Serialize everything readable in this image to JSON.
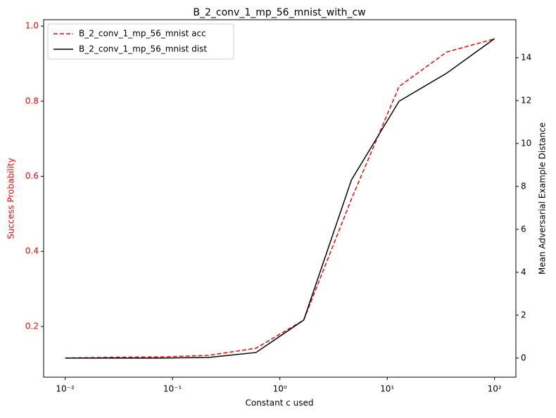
{
  "chart_data": {
    "type": "line",
    "title": "B_2_conv_1_mp_56_mnist_with_cw",
    "x_label": "Constant c used",
    "y_label": "Success Probability",
    "y2_label": "Mean Adversarial Example Distance",
    "x": [
      0.01,
      0.0278,
      0.0774,
      0.215,
      0.599,
      1.668,
      4.64,
      12.9,
      35.9,
      100
    ],
    "x_scale": "log",
    "xlim": [
      0.0063,
      158
    ],
    "xticks": [
      {
        "value": 0.01,
        "label": "10⁻²"
      },
      {
        "value": 0.1,
        "label": "10⁻¹"
      },
      {
        "value": 1,
        "label": "10⁰"
      },
      {
        "value": 10,
        "label": "10¹"
      },
      {
        "value": 100,
        "label": "10²"
      }
    ],
    "ylim": [
      0.065,
      1.017
    ],
    "yticks": [
      0.2,
      0.4,
      0.6,
      0.8,
      {
        "value": 1,
        "label": "1.0"
      }
    ],
    "y2lim": [
      -0.89,
      15.77
    ],
    "y2ticks": [
      0,
      2,
      4,
      6,
      8,
      10,
      12,
      14
    ],
    "y_color": "#ff0000",
    "legend": "upper left",
    "series": [
      {
        "name": "B_2_conv_1_mp_56_mnist acc",
        "color": "#ff0000",
        "dash": true,
        "values": [
          0.116,
          0.118,
          0.119,
          0.123,
          0.142,
          0.217,
          0.539,
          0.839,
          0.931,
          0.966
        ]
      },
      {
        "name": "B_2_conv_1_mp_56_mnist dist",
        "color": "#000000",
        "axis": "y2",
        "values": [
          0,
          0,
          0,
          0.03,
          0.26,
          1.77,
          8.3,
          11.97,
          13.28,
          14.89
        ]
      }
    ]
  }
}
